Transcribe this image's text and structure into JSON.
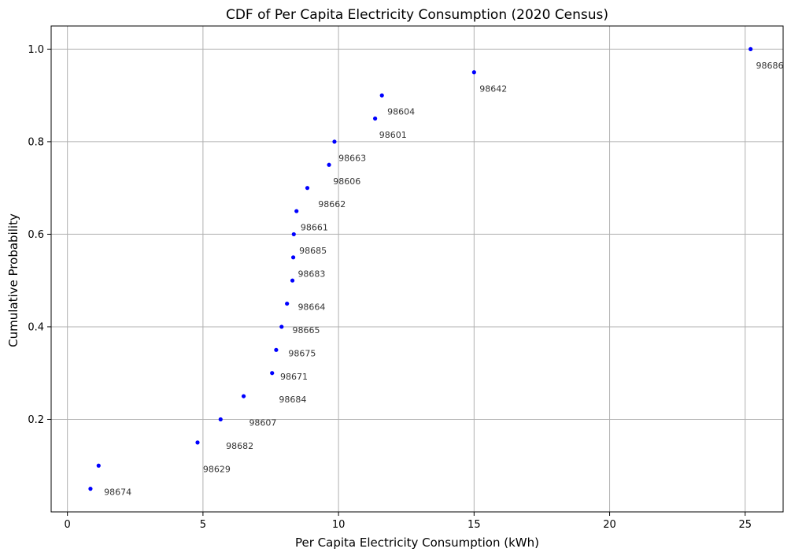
{
  "chart_data": {
    "type": "scatter",
    "title": "CDF of Per Capita Electricity Consumption (2020 Census)",
    "xlabel": "Per Capita Electricity Consumption (kWh)",
    "ylabel": "Cumulative Probability",
    "xlim": [
      -0.6,
      26.4
    ],
    "ylim": [
      0.0,
      1.05
    ],
    "xticks": [
      0,
      5,
      10,
      15,
      20,
      25
    ],
    "yticks": [
      0.2,
      0.4,
      0.6,
      0.8,
      1.0
    ],
    "xtick_labels": [
      "0",
      "5",
      "10",
      "15",
      "20",
      "25"
    ],
    "ytick_labels": [
      "0.2",
      "0.4",
      "0.6",
      "0.8",
      "1.0"
    ],
    "grid": true,
    "marker_color": "#0000ff",
    "points": [
      {
        "x": 0.85,
        "y": 0.05
      },
      {
        "x": 1.15,
        "y": 0.1
      },
      {
        "x": 4.8,
        "y": 0.15
      },
      {
        "x": 5.65,
        "y": 0.2
      },
      {
        "x": 6.5,
        "y": 0.25
      },
      {
        "x": 7.55,
        "y": 0.3
      },
      {
        "x": 7.7,
        "y": 0.35
      },
      {
        "x": 7.9,
        "y": 0.4
      },
      {
        "x": 8.1,
        "y": 0.45
      },
      {
        "x": 8.3,
        "y": 0.5
      },
      {
        "x": 8.33,
        "y": 0.55
      },
      {
        "x": 8.35,
        "y": 0.6
      },
      {
        "x": 8.45,
        "y": 0.65
      },
      {
        "x": 8.85,
        "y": 0.7
      },
      {
        "x": 9.65,
        "y": 0.75
      },
      {
        "x": 9.85,
        "y": 0.8
      },
      {
        "x": 11.35,
        "y": 0.85
      },
      {
        "x": 11.6,
        "y": 0.9
      },
      {
        "x": 15.0,
        "y": 0.95
      },
      {
        "x": 25.2,
        "y": 1.0
      }
    ],
    "annotations": [
      {
        "text": "98674",
        "x": 1.35,
        "y": 0.043
      },
      {
        "text": "98629",
        "x": 5.0,
        "y": 0.093
      },
      {
        "text": "98682",
        "x": 5.85,
        "y": 0.143
      },
      {
        "text": "98607",
        "x": 6.7,
        "y": 0.193
      },
      {
        "text": "98684",
        "x": 7.8,
        "y": 0.243
      },
      {
        "text": "98671",
        "x": 7.85,
        "y": 0.293
      },
      {
        "text": "98675",
        "x": 8.15,
        "y": 0.343
      },
      {
        "text": "98665",
        "x": 8.3,
        "y": 0.393
      },
      {
        "text": "98664",
        "x": 8.5,
        "y": 0.443
      },
      {
        "text": "98683",
        "x": 8.5,
        "y": 0.515
      },
      {
        "text": "98685",
        "x": 8.55,
        "y": 0.565
      },
      {
        "text": "98661",
        "x": 8.6,
        "y": 0.615
      },
      {
        "text": "98662",
        "x": 9.25,
        "y": 0.665
      },
      {
        "text": "98606",
        "x": 9.8,
        "y": 0.715
      },
      {
        "text": "98663",
        "x": 10.0,
        "y": 0.765
      },
      {
        "text": "98601",
        "x": 11.5,
        "y": 0.815
      },
      {
        "text": "98604",
        "x": 11.8,
        "y": 0.865
      },
      {
        "text": "98642",
        "x": 15.2,
        "y": 0.915
      },
      {
        "text": "98686",
        "x": 25.4,
        "y": 0.965
      }
    ]
  }
}
